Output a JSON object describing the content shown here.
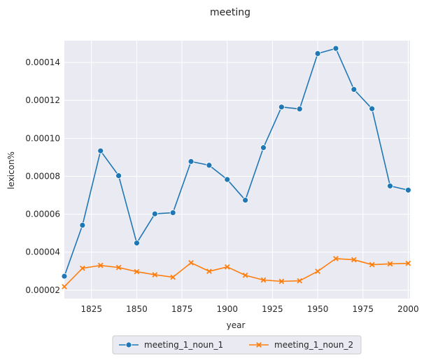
{
  "chart_data": {
    "type": "line",
    "title": "meeting",
    "xlabel": "year",
    "ylabel": "lexicon%",
    "xlim": [
      1810,
      2001
    ],
    "ylim": [
      1.55e-05,
      0.0001515
    ],
    "x_ticks": [
      1825,
      1850,
      1875,
      1900,
      1925,
      1950,
      1975,
      2000
    ],
    "x_tick_labels": [
      "1825",
      "1850",
      "1875",
      "1900",
      "1925",
      "1950",
      "1975",
      "2000"
    ],
    "y_ticks": [
      2e-05,
      4e-05,
      6e-05,
      8e-05,
      0.0001,
      0.00012,
      0.00014
    ],
    "y_tick_labels": [
      "0.00002",
      "0.00004",
      "0.00006",
      "0.00008",
      "0.00010",
      "0.00012",
      "0.00014"
    ],
    "grid": true,
    "legend_position": "bottom-center",
    "x": [
      1810,
      1820,
      1830,
      1840,
      1850,
      1860,
      1870,
      1880,
      1890,
      1900,
      1910,
      1920,
      1930,
      1940,
      1950,
      1960,
      1970,
      1980,
      1990,
      2000
    ],
    "series": [
      {
        "name": "meeting_1_noun_1",
        "color": "#1f77b4",
        "marker": "circle",
        "values": [
          2.73e-05,
          5.42e-05,
          9.34e-05,
          8.03e-05,
          4.48e-05,
          6.02e-05,
          6.08e-05,
          8.78e-05,
          8.58e-05,
          7.83e-05,
          6.74e-05,
          9.51e-05,
          0.0001165,
          0.0001155,
          0.0001447,
          0.0001474,
          0.0001258,
          0.0001156,
          7.49e-05,
          7.27e-05
        ]
      },
      {
        "name": "meeting_1_noun_2",
        "color": "#ff7f0e",
        "marker": "x",
        "values": [
          2.18e-05,
          3.15e-05,
          3.3e-05,
          3.19e-05,
          2.97e-05,
          2.81e-05,
          2.68e-05,
          3.44e-05,
          2.99e-05,
          3.22e-05,
          2.78e-05,
          2.53e-05,
          2.46e-05,
          2.49e-05,
          2.99e-05,
          3.66e-05,
          3.6e-05,
          3.34e-05,
          3.38e-05,
          3.41e-05
        ]
      }
    ]
  }
}
